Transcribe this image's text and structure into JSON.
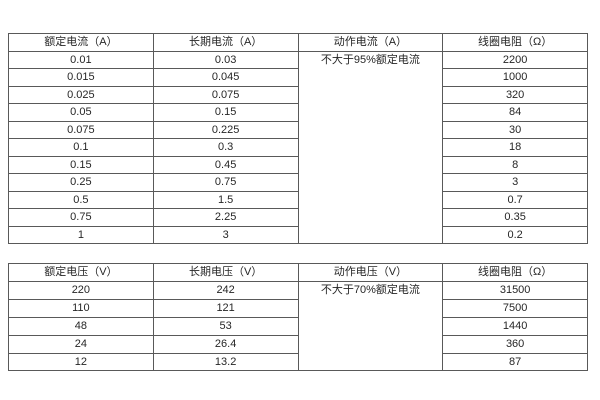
{
  "page": {
    "background_color": "#ffffff",
    "border_color": "#595959",
    "text_color": "#262626"
  },
  "tables": [
    {
      "id": "current",
      "name": "current-spec-table",
      "headers": [
        "额定电流（A）",
        "长期电流（A）",
        "动作电流（A）",
        "线圈电阻（Ω）"
      ],
      "merged_column": {
        "index": 2,
        "text": "不大于95%额定电流"
      },
      "rows": [
        [
          "0.01",
          "0.03",
          "2200"
        ],
        [
          "0.015",
          "0.045",
          "1000"
        ],
        [
          "0.025",
          "0.075",
          "320"
        ],
        [
          "0.05",
          "0.15",
          "84"
        ],
        [
          "0.075",
          "0.225",
          "30"
        ],
        [
          "0.1",
          "0.3",
          "18"
        ],
        [
          "0.15",
          "0.45",
          "8"
        ],
        [
          "0.25",
          "0.75",
          "3"
        ],
        [
          "0.5",
          "1.5",
          "0.7"
        ],
        [
          "0.75",
          "2.25",
          "0.35"
        ],
        [
          "1",
          "3",
          "0.2"
        ]
      ]
    },
    {
      "id": "voltage",
      "name": "voltage-spec-table",
      "headers": [
        "额定电压（V）",
        "长期电压（V）",
        "动作电压（V）",
        "线圈电阻（Ω）"
      ],
      "merged_column": {
        "index": 2,
        "text": "不大于70%额定电流"
      },
      "rows": [
        [
          "220",
          "242",
          "31500"
        ],
        [
          "110",
          "121",
          "7500"
        ],
        [
          "48",
          "53",
          "1440"
        ],
        [
          "24",
          "26.4",
          "360"
        ],
        [
          "12",
          "13.2",
          "87"
        ]
      ]
    }
  ]
}
